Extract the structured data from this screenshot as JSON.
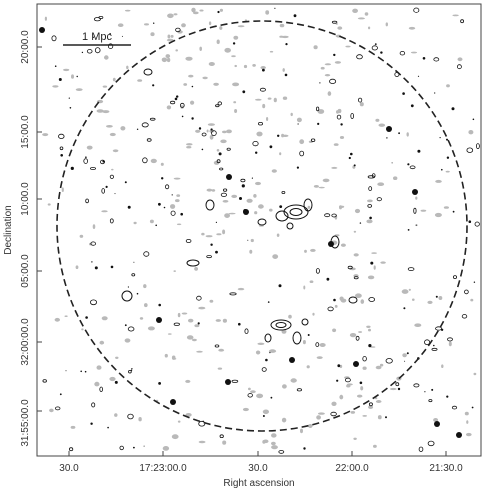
{
  "figure": {
    "x_axis_title": "Right ascension",
    "y_axis_title": "Declination",
    "x_tick_labels": [
      "30.0",
      "17:23:00.0",
      "30.0",
      "22:00.0",
      "21:30.0"
    ],
    "y_tick_labels": [
      "20:00.0",
      "15:00.0",
      "10:00.0",
      "05:00.0",
      "32:00:00.0",
      "31:55:00.0"
    ],
    "scale_bar_label": "1 Mpc",
    "colors": {
      "contour_dark": "#111111",
      "contour_light": "#b9b9b9",
      "circle": "#222222",
      "frame": "#444444"
    }
  }
}
